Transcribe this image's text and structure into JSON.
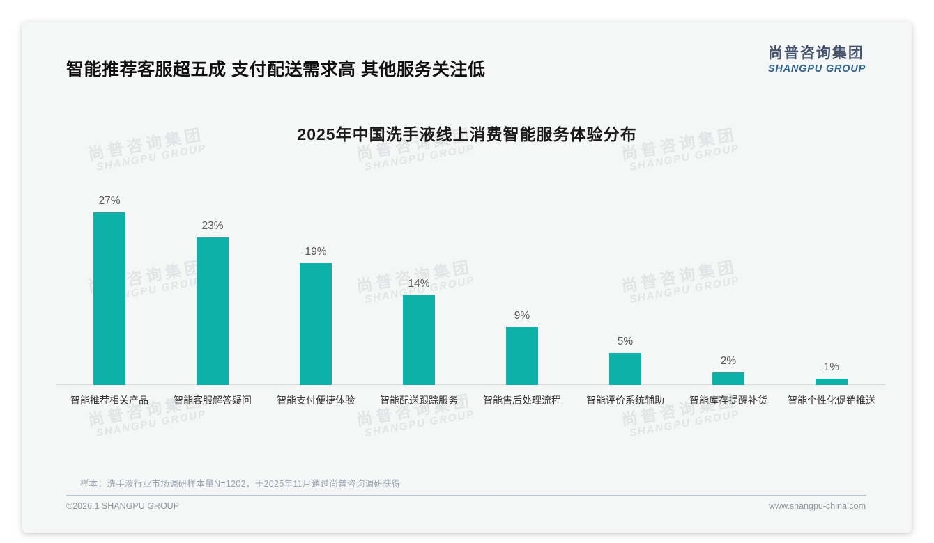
{
  "page": {
    "title": "智能推荐客服超五成 支付配送需求高 其他服务关注低",
    "logo": {
      "cn": "尚普咨询集团",
      "en": "SHANGPU GROUP"
    },
    "watermark": {
      "cn": "尚普咨询集团",
      "en": "SHANGPU GROUP"
    },
    "note": "样本：洗手液行业市场调研样本量N=1202，于2025年11月通过尚普咨询调研获得",
    "footer": {
      "left": "©2026.1 SHANGPU GROUP",
      "right": "www.shangpu-china.com"
    }
  },
  "colors": {
    "bar_accent": "#0db1a7",
    "logo_cn": "#44546a",
    "logo_en": "#2c6496",
    "card_background": "#f5f6f6"
  },
  "chart_data": {
    "type": "bar",
    "title": "2025年中国洗手液线上消费智能服务体验分布",
    "categories": [
      "智能推荐相关产品",
      "智能客服解答疑问",
      "智能支付便捷体验",
      "智能配送跟踪服务",
      "智能售后处理流程",
      "智能评价系统辅助",
      "智能库存提醒补货",
      "智能个性化促销推送"
    ],
    "values": [
      27,
      23,
      19,
      14,
      9,
      5,
      2,
      1
    ],
    "unit": "%",
    "xlabel": "",
    "ylabel": "",
    "ylim": [
      0,
      30
    ],
    "grid": false,
    "legend": false,
    "bar_color": "#0db1a7",
    "value_labels_shown": true
  }
}
